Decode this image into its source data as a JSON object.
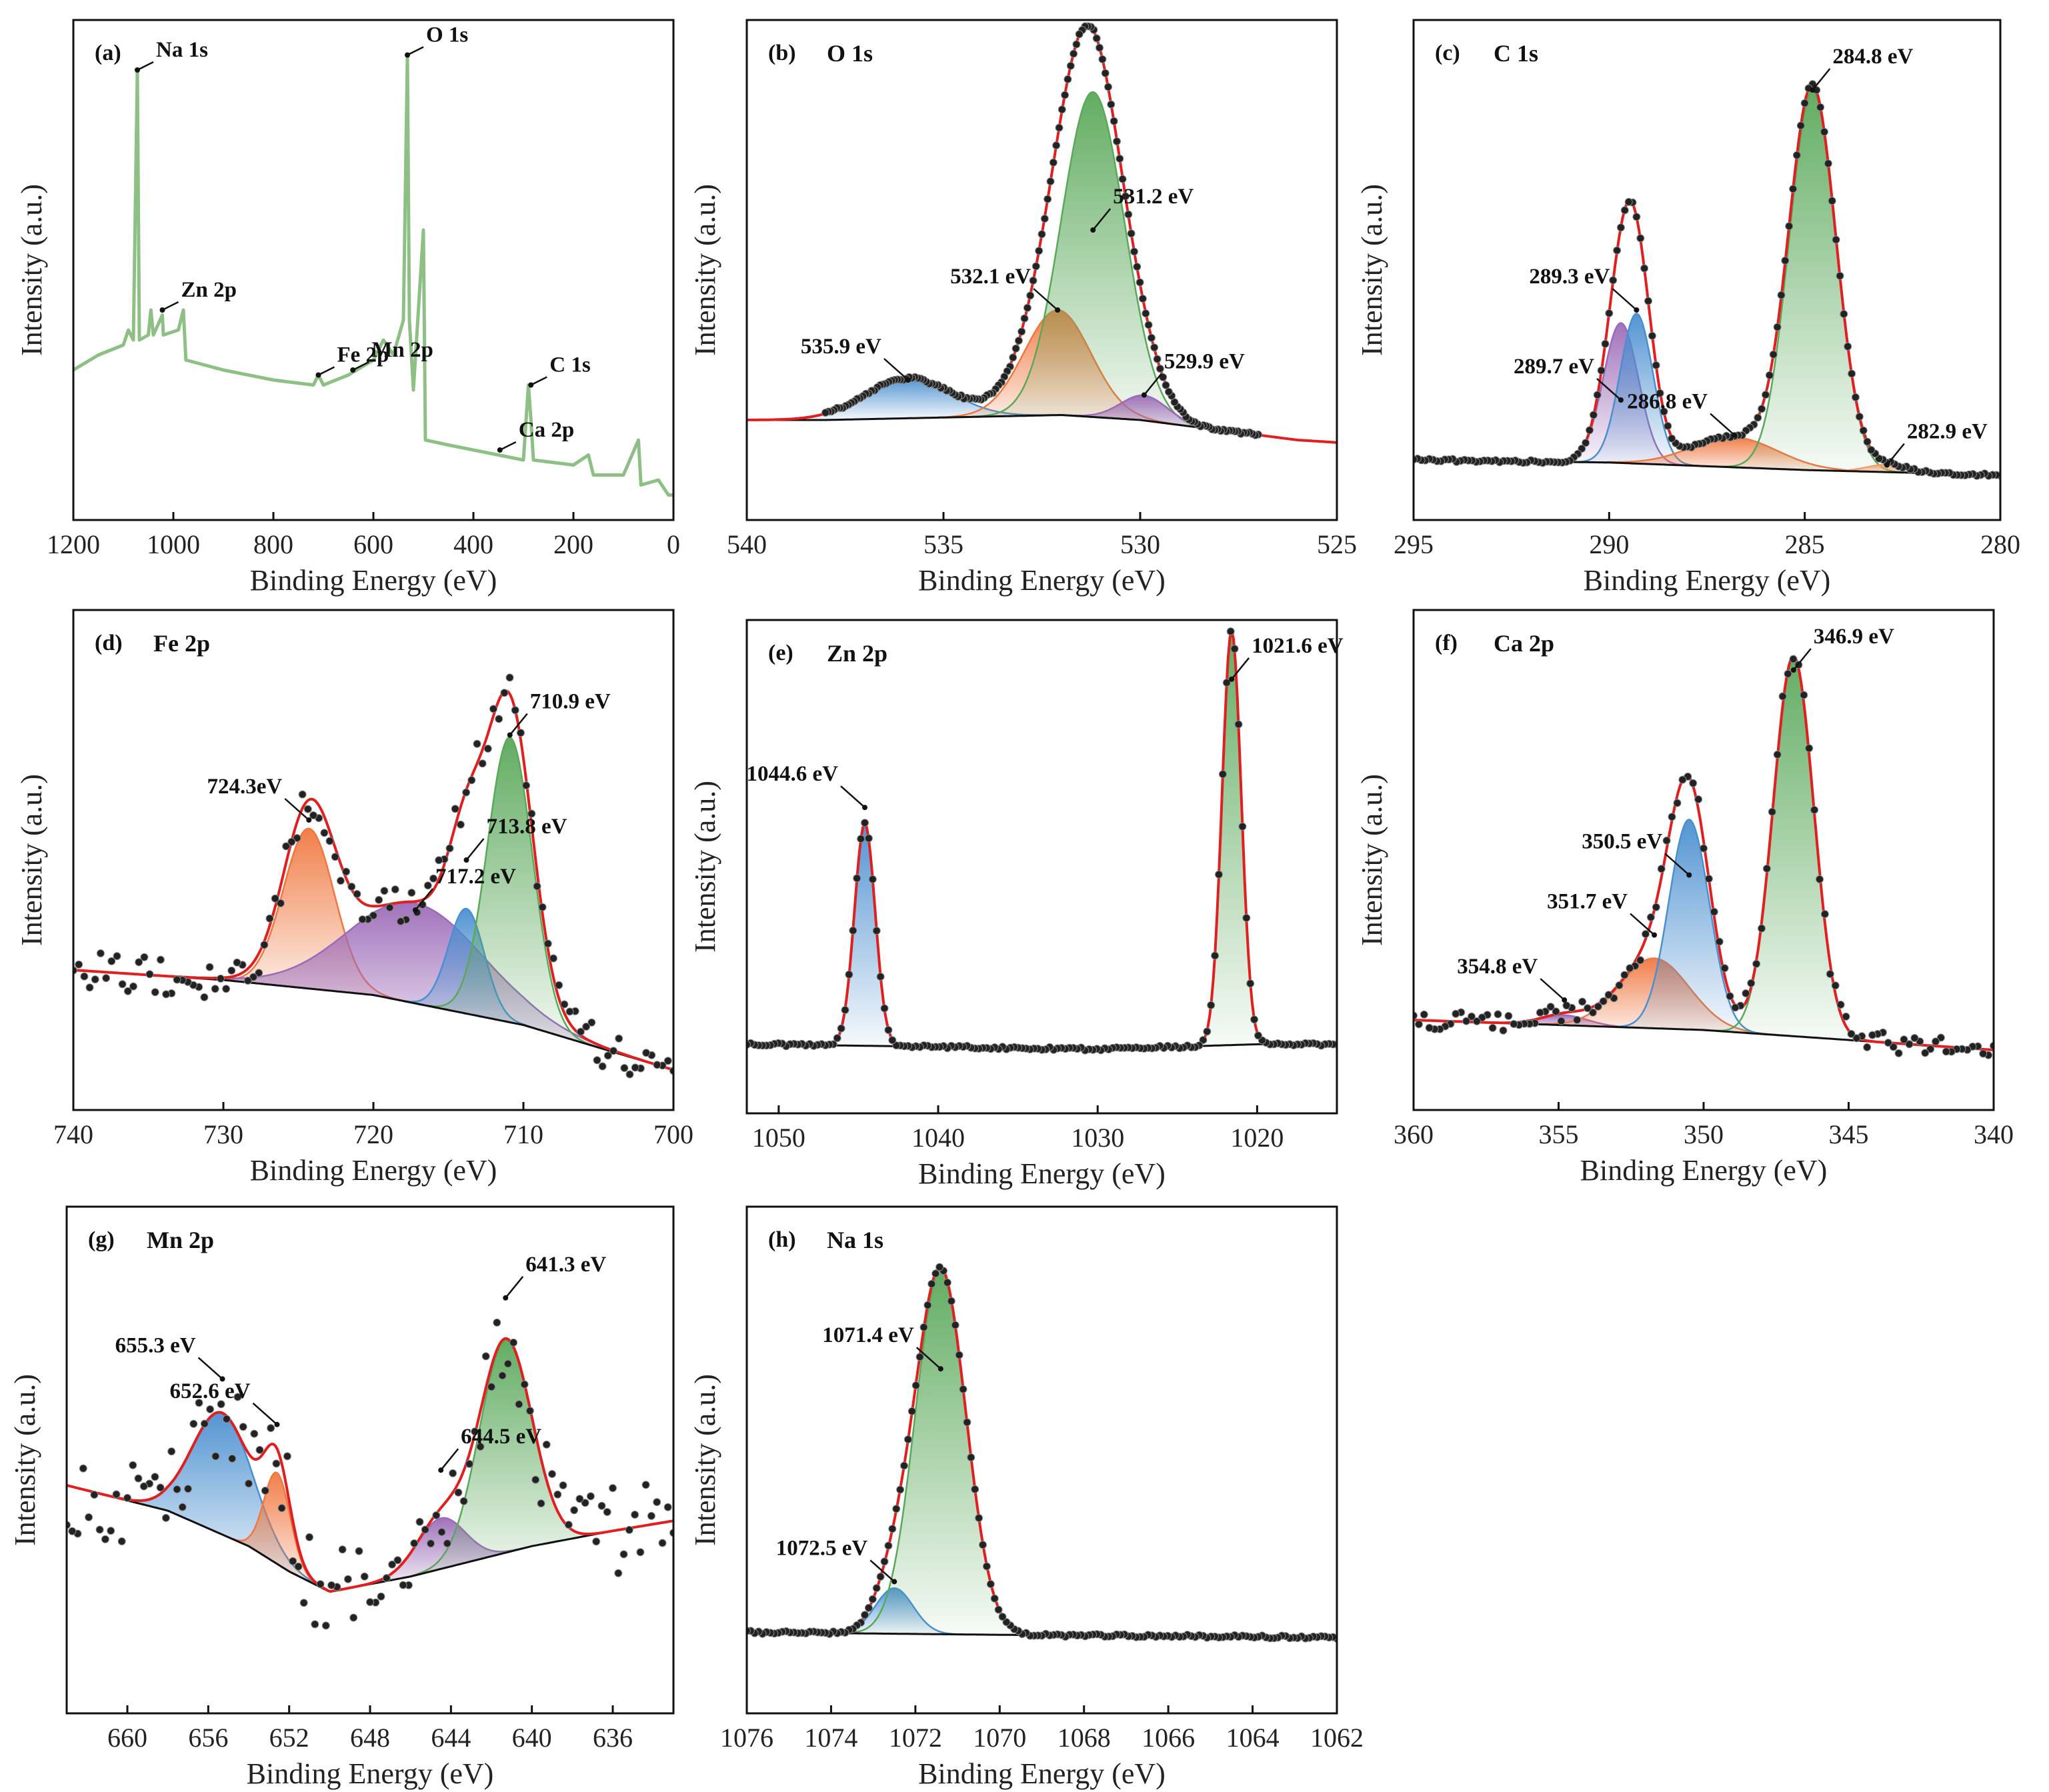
{
  "figure": {
    "x_title": "Binding Energy (eV)",
    "y_title": "Intensity (a.u.)"
  },
  "chart_data": [
    {
      "id": "a",
      "type": "line",
      "label": "(a)",
      "title": "",
      "xlabel": "Binding Energy (eV)",
      "ylabel": "Intensity (a.u.)",
      "xlim": [
        1200,
        0
      ],
      "ylim": [
        0,
        100
      ],
      "xticks": [
        1200,
        1000,
        800,
        600,
        400,
        200,
        0
      ],
      "xtick_labels": [
        "1200",
        "1000",
        "800",
        "600",
        "400",
        "200",
        "0"
      ],
      "survey": [
        [
          1200,
          30
        ],
        [
          1150,
          33
        ],
        [
          1100,
          35
        ],
        [
          1090,
          38
        ],
        [
          1080,
          36
        ],
        [
          1072,
          90
        ],
        [
          1068,
          36
        ],
        [
          1050,
          37
        ],
        [
          1045,
          42
        ],
        [
          1040,
          37
        ],
        [
          1022,
          41
        ],
        [
          1020,
          37
        ],
        [
          990,
          38
        ],
        [
          980,
          42
        ],
        [
          975,
          32
        ],
        [
          900,
          30
        ],
        [
          800,
          28
        ],
        [
          720,
          27
        ],
        [
          710,
          29
        ],
        [
          700,
          27
        ],
        [
          650,
          29
        ],
        [
          600,
          32
        ],
        [
          580,
          36
        ],
        [
          560,
          33
        ],
        [
          540,
          40
        ],
        [
          532,
          93
        ],
        [
          528,
          40
        ],
        [
          520,
          26
        ],
        [
          500,
          58
        ],
        [
          496,
          16
        ],
        [
          450,
          15
        ],
        [
          400,
          14
        ],
        [
          350,
          13
        ],
        [
          300,
          12
        ],
        [
          290,
          27
        ],
        [
          285,
          20
        ],
        [
          280,
          12
        ],
        [
          200,
          11
        ],
        [
          170,
          13
        ],
        [
          160,
          9
        ],
        [
          100,
          9
        ],
        [
          70,
          16
        ],
        [
          65,
          7
        ],
        [
          30,
          8
        ],
        [
          10,
          5
        ],
        [
          0,
          5
        ]
      ],
      "annotations": [
        {
          "text": "Na 1s",
          "x": 1072,
          "y": 90
        },
        {
          "text": "Zn 2p",
          "x": 1022,
          "y": 42
        },
        {
          "text": "Fe 2p",
          "x": 710,
          "y": 29
        },
        {
          "text": "Mn 2p",
          "x": 641,
          "y": 30
        },
        {
          "text": "O 1s",
          "x": 532,
          "y": 93
        },
        {
          "text": "Ca 2p",
          "x": 347,
          "y": 14
        },
        {
          "text": "C 1s",
          "x": 285,
          "y": 27
        }
      ]
    },
    {
      "id": "b",
      "type": "line",
      "label": "(b)",
      "title": "O 1s",
      "xlabel": "Binding Energy (eV)",
      "ylabel": "Intensity (a.u.)",
      "xlim": [
        540,
        525
      ],
      "ylim": [
        0,
        100
      ],
      "xticks": [
        540,
        535,
        530,
        525
      ],
      "xtick_labels": [
        "540",
        "535",
        "530",
        "525"
      ],
      "baseline": [
        [
          538,
          20
        ],
        [
          535,
          20.5
        ],
        [
          532,
          21
        ],
        [
          530,
          20
        ],
        [
          528,
          18
        ],
        [
          526,
          16
        ],
        [
          525,
          15.5
        ]
      ],
      "peaks": [
        {
          "center": 535.9,
          "height": 8,
          "sigma": 1.1,
          "color": "#4a8fd0"
        },
        {
          "center": 532.1,
          "height": 21,
          "sigma": 0.85,
          "color": "#f07840"
        },
        {
          "center": 531.2,
          "height": 65,
          "sigma": 0.8,
          "color": "#5aa85a"
        },
        {
          "center": 529.9,
          "height": 5,
          "sigma": 0.6,
          "color": "#9c6bb8"
        }
      ],
      "envelope_color": "#e02020",
      "points_range": [
        538,
        527
      ],
      "annotations": [
        {
          "text": "535.9 eV",
          "x": 535.9,
          "y": 28
        },
        {
          "text": "532.1 eV",
          "x": 532.1,
          "y": 42
        },
        {
          "text": "531.2 eV",
          "x": 531.2,
          "y": 58
        },
        {
          "text": "529.9 eV",
          "x": 529.9,
          "y": 25
        }
      ]
    },
    {
      "id": "c",
      "type": "line",
      "label": "(c)",
      "title": "C 1s",
      "xlabel": "Binding Energy (eV)",
      "ylabel": "Intensity (a.u.)",
      "xlim": [
        295,
        280
      ],
      "ylim": [
        0,
        100
      ],
      "xticks": [
        295,
        290,
        285,
        280
      ],
      "xtick_labels": [
        "295",
        "290",
        "285",
        "280"
      ],
      "baseline": [
        [
          295,
          12
        ],
        [
          290,
          11.5
        ],
        [
          285,
          10
        ],
        [
          280,
          9
        ]
      ],
      "peaks": [
        {
          "center": 289.7,
          "height": 28,
          "sigma": 0.45,
          "color": "#9c6bb8"
        },
        {
          "center": 289.3,
          "height": 30,
          "sigma": 0.42,
          "color": "#4a8fd0"
        },
        {
          "center": 286.8,
          "height": 6,
          "sigma": 1.1,
          "color": "#f07840"
        },
        {
          "center": 284.8,
          "height": 76,
          "sigma": 0.6,
          "color": "#5aa85a"
        },
        {
          "center": 282.9,
          "height": 1.5,
          "sigma": 0.5,
          "color": "#f0a070"
        }
      ],
      "envelope_color": "#e02020",
      "points_range": [
        295,
        280
      ],
      "annotations": [
        {
          "text": "289.7 eV",
          "x": 289.7,
          "y": 24
        },
        {
          "text": "289.3 eV",
          "x": 289.3,
          "y": 42
        },
        {
          "text": "286.8 eV",
          "x": 286.8,
          "y": 17
        },
        {
          "text": "284.8 eV",
          "x": 284.8,
          "y": 86
        },
        {
          "text": "282.9 eV",
          "x": 282.9,
          "y": 11
        }
      ]
    },
    {
      "id": "d",
      "type": "line",
      "label": "(d)",
      "title": "Fe 2p",
      "xlabel": "Binding Energy (eV)",
      "ylabel": "Intensity (a.u.)",
      "xlim": [
        740,
        700
      ],
      "ylim": [
        0,
        100
      ],
      "xticks": [
        740,
        730,
        720,
        710,
        700
      ],
      "xtick_labels": [
        "740",
        "730",
        "720",
        "710",
        "700"
      ],
      "baseline": [
        [
          740,
          28
        ],
        [
          730,
          26
        ],
        [
          720,
          23
        ],
        [
          710,
          17
        ],
        [
          700,
          8
        ]
      ],
      "peaks": [
        {
          "center": 724.3,
          "height": 32,
          "sigma": 1.7,
          "color": "#f07840"
        },
        {
          "center": 717.2,
          "height": 20,
          "sigma": 4.5,
          "color": "#9c6bb8"
        },
        {
          "center": 713.8,
          "height": 21,
          "sigma": 1.2,
          "color": "#4a8fd0"
        },
        {
          "center": 710.9,
          "height": 57,
          "sigma": 1.5,
          "color": "#5aa85a"
        }
      ],
      "envelope_color": "#e02020",
      "points_range": [
        740,
        700
      ],
      "annotations": [
        {
          "text": "724.3eV",
          "x": 724.3,
          "y": 58
        },
        {
          "text": "717.2 eV",
          "x": 717.2,
          "y": 40
        },
        {
          "text": "713.8 eV",
          "x": 713.8,
          "y": 50
        },
        {
          "text": "710.9 eV",
          "x": 710.9,
          "y": 75
        }
      ]
    },
    {
      "id": "e",
      "type": "line",
      "label": "(e)",
      "title": "Zn 2p",
      "xlabel": "Binding Energy (eV)",
      "ylabel": "Intensity (a.u.)",
      "xlim": [
        1052,
        1015
      ],
      "ylim": [
        0,
        100
      ],
      "xticks": [
        1050,
        1040,
        1030,
        1020
      ],
      "xtick_labels": [
        "1050",
        "1040",
        "1030",
        "1020"
      ],
      "baseline": [
        [
          1052,
          14
        ],
        [
          1040,
          13.5
        ],
        [
          1030,
          13
        ],
        [
          1020,
          14
        ],
        [
          1015,
          14
        ]
      ],
      "peaks": [
        {
          "center": 1044.6,
          "height": 45,
          "sigma": 0.65,
          "color": "#4a8fd0"
        },
        {
          "center": 1021.6,
          "height": 84,
          "sigma": 0.6,
          "color": "#5aa85a"
        }
      ],
      "envelope_color": "#e02020",
      "points_range": [
        1052,
        1015
      ],
      "annotations": [
        {
          "text": "1044.6 eV",
          "x": 1044.6,
          "y": 62
        },
        {
          "text": "1021.6 eV",
          "x": 1021.6,
          "y": 88
        }
      ]
    },
    {
      "id": "f",
      "type": "line",
      "label": "(f)",
      "title": "Ca 2p",
      "xlabel": "Binding Energy (eV)",
      "ylabel": "Intensity (a.u.)",
      "xlim": [
        360,
        340
      ],
      "ylim": [
        0,
        100
      ],
      "xticks": [
        360,
        355,
        350,
        345,
        340
      ],
      "xtick_labels": [
        "360",
        "355",
        "350",
        "345",
        "340"
      ],
      "baseline": [
        [
          360,
          18
        ],
        [
          355,
          17
        ],
        [
          350,
          16
        ],
        [
          345,
          14
        ],
        [
          340,
          12
        ]
      ],
      "peaks": [
        {
          "center": 354.8,
          "height": 2,
          "sigma": 0.8,
          "color": "#9c6bb8"
        },
        {
          "center": 351.7,
          "height": 14,
          "sigma": 1.2,
          "color": "#f07840"
        },
        {
          "center": 350.5,
          "height": 42,
          "sigma": 0.7,
          "color": "#4a8fd0"
        },
        {
          "center": 346.9,
          "height": 76,
          "sigma": 0.7,
          "color": "#5aa85a"
        }
      ],
      "envelope_color": "#e02020",
      "points_range": [
        360,
        340
      ],
      "annotations": [
        {
          "text": "354.8 eV",
          "x": 354.8,
          "y": 22
        },
        {
          "text": "351.7 eV",
          "x": 351.7,
          "y": 35
        },
        {
          "text": "350.5 eV",
          "x": 350.5,
          "y": 47
        },
        {
          "text": "346.9 eV",
          "x": 346.9,
          "y": 88
        }
      ]
    },
    {
      "id": "g",
      "type": "line",
      "label": "(g)",
      "title": "Mn 2p",
      "xlabel": "Binding Energy (eV)",
      "ylabel": "Intensity (a.u.)",
      "xlim": [
        663,
        633
      ],
      "ylim": [
        0,
        100
      ],
      "xticks": [
        660,
        656,
        652,
        648,
        644,
        640,
        636
      ],
      "xtick_labels": [
        "660",
        "656",
        "652",
        "648",
        "644",
        "640",
        "636"
      ],
      "baseline": [
        [
          663,
          45
        ],
        [
          658,
          40
        ],
        [
          654,
          33
        ],
        [
          652,
          28
        ],
        [
          650,
          24
        ],
        [
          646,
          27
        ],
        [
          640,
          33
        ],
        [
          636,
          36
        ],
        [
          633,
          38
        ]
      ],
      "peaks": [
        {
          "center": 655.3,
          "height": 24,
          "sigma": 1.5,
          "color": "#4a8fd0"
        },
        {
          "center": 652.6,
          "height": 18,
          "sigma": 0.65,
          "color": "#f07840"
        },
        {
          "center": 644.5,
          "height": 10,
          "sigma": 1.2,
          "color": "#9c6bb8"
        },
        {
          "center": 641.3,
          "height": 42,
          "sigma": 1.3,
          "color": "#5aa85a"
        }
      ],
      "envelope_color": "#e02020",
      "points_range": [
        663,
        633
      ],
      "annotations": [
        {
          "text": "655.3 eV",
          "x": 655.3,
          "y": 66
        },
        {
          "text": "652.6 eV",
          "x": 652.6,
          "y": 57
        },
        {
          "text": "644.5 eV",
          "x": 644.5,
          "y": 48
        },
        {
          "text": "641.3 eV",
          "x": 641.3,
          "y": 82
        }
      ]
    },
    {
      "id": "h",
      "type": "line",
      "label": "(h)",
      "title": "Na 1s",
      "xlabel": "Binding Energy (eV)",
      "ylabel": "Intensity (a.u.)",
      "xlim": [
        1076,
        1062
      ],
      "ylim": [
        0,
        100
      ],
      "xticks": [
        1076,
        1074,
        1072,
        1070,
        1068,
        1066,
        1064,
        1062
      ],
      "xtick_labels": [
        "1076",
        "1074",
        "1072",
        "1070",
        "1068",
        "1066",
        "1064",
        "1062"
      ],
      "baseline": [
        [
          1076,
          16
        ],
        [
          1070,
          15.5
        ],
        [
          1062,
          15
        ]
      ],
      "peaks": [
        {
          "center": 1072.5,
          "height": 9,
          "sigma": 0.45,
          "color": "#4a8fd0"
        },
        {
          "center": 1071.4,
          "height": 72,
          "sigma": 0.6,
          "color": "#5aa85a"
        }
      ],
      "envelope_color": "#e02020",
      "points_range": [
        1076,
        1062
      ],
      "annotations": [
        {
          "text": "1072.5 eV",
          "x": 1072.5,
          "y": 26
        },
        {
          "text": "1071.4 eV",
          "x": 1071.4,
          "y": 68
        }
      ]
    }
  ]
}
